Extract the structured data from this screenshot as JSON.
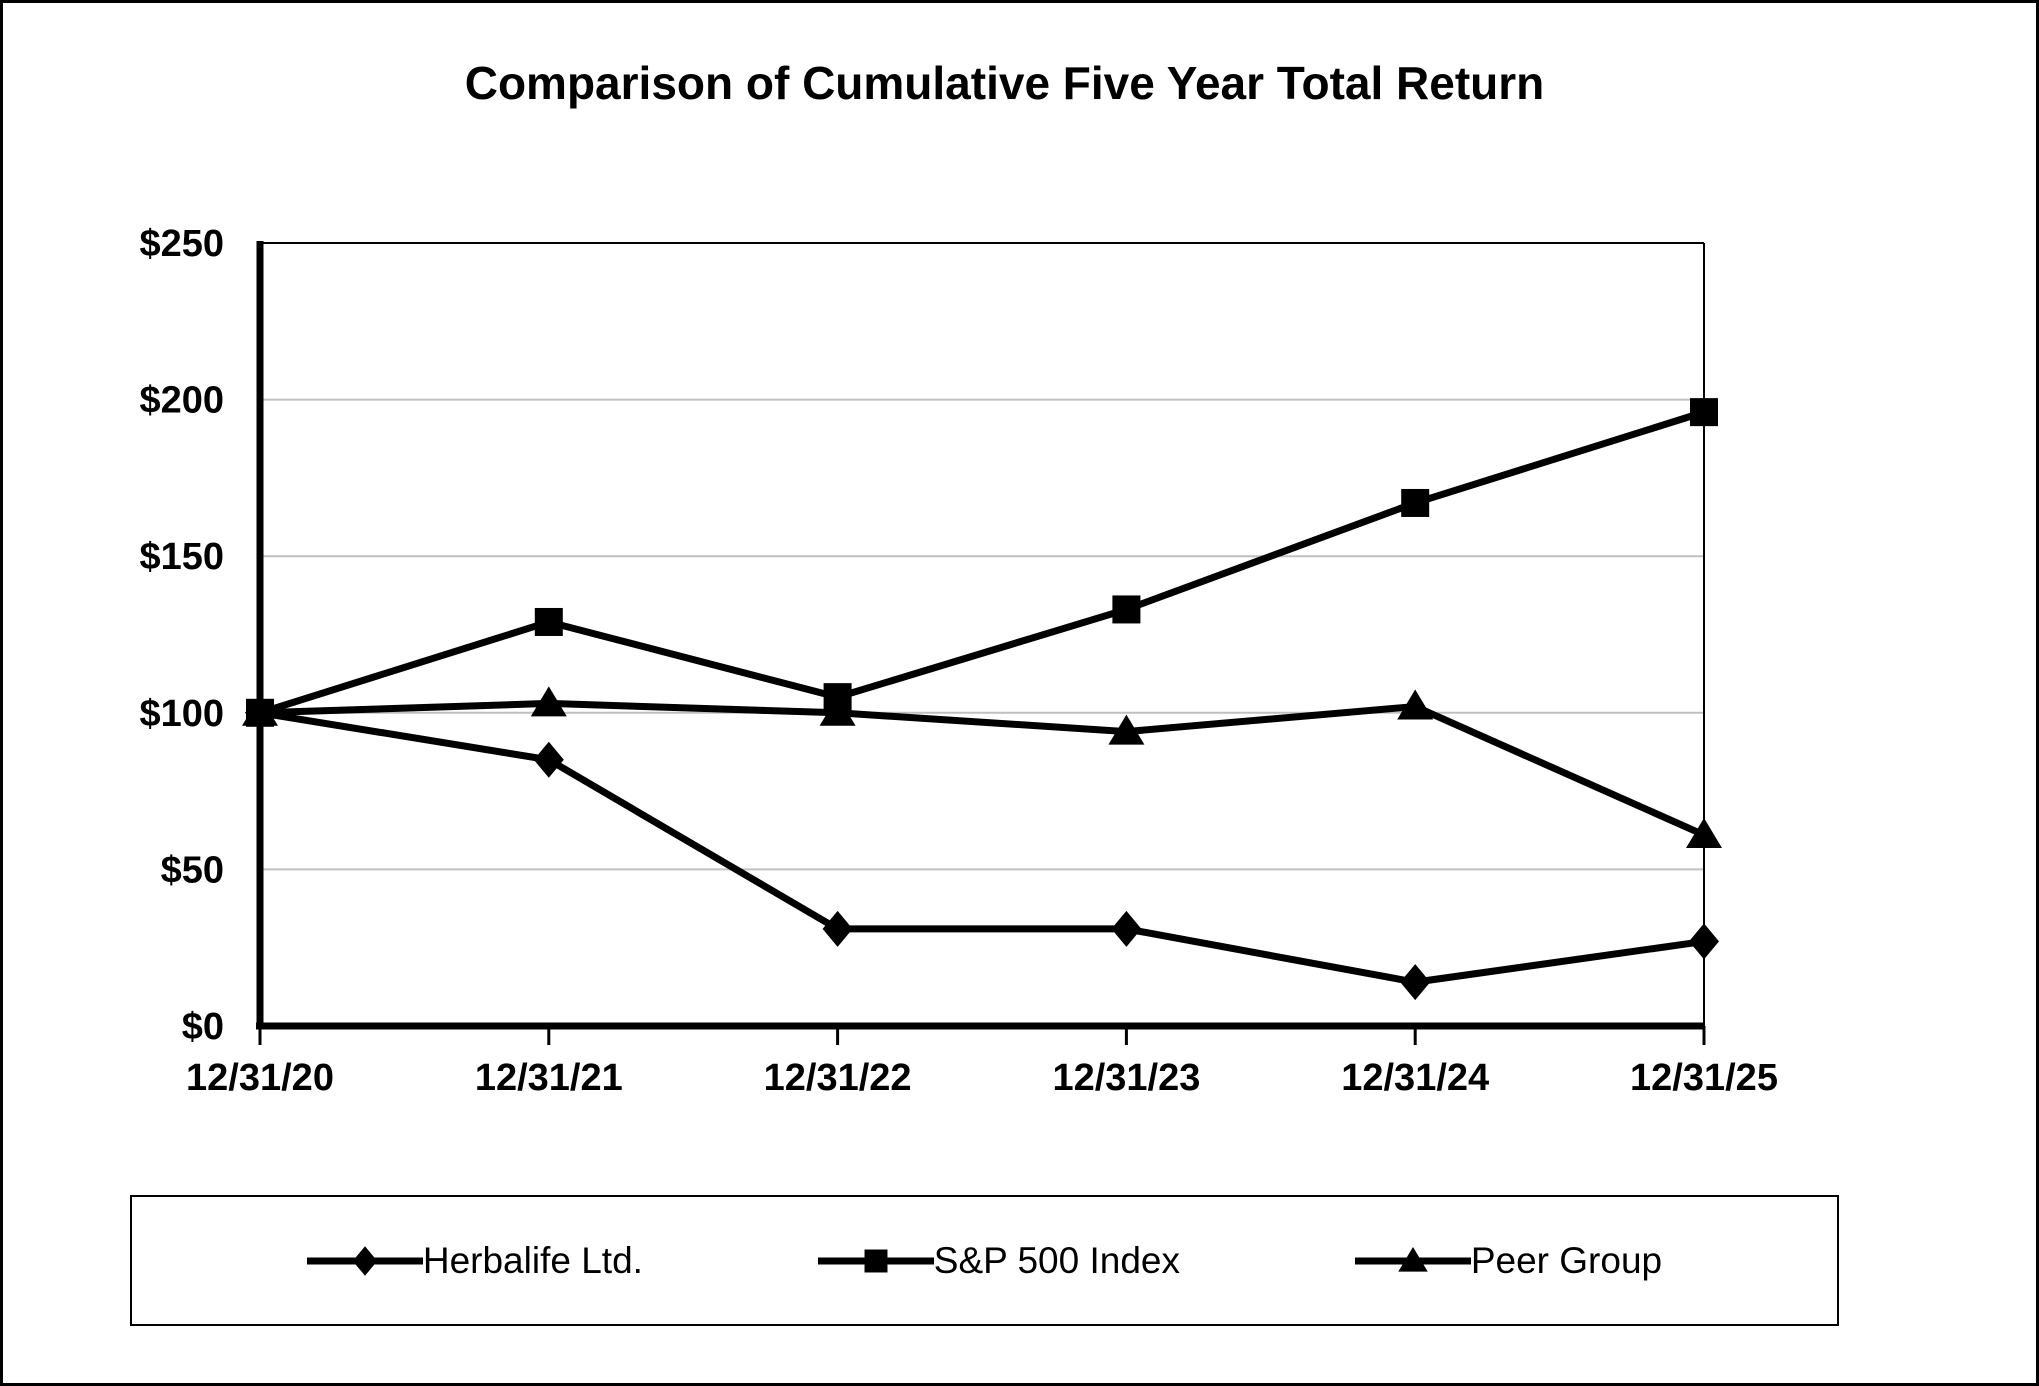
{
  "chart_data": {
    "type": "line",
    "title": "Comparison of Cumulative Five Year Total Return",
    "categories": [
      "12/31/20",
      "12/31/21",
      "12/31/22",
      "12/31/23",
      "12/31/24",
      "12/31/25"
    ],
    "series": [
      {
        "name": "Herbalife Ltd.",
        "marker": "diamond",
        "color": "#000000",
        "values": [
          100,
          85,
          31,
          31,
          14,
          27
        ]
      },
      {
        "name": "S&P 500 Index",
        "marker": "square",
        "color": "#000000",
        "values": [
          100,
          129,
          105,
          133,
          167,
          196
        ]
      },
      {
        "name": "Peer Group",
        "marker": "triangle",
        "color": "#000000",
        "values": [
          100,
          103,
          100,
          94,
          102,
          61
        ]
      }
    ],
    "xlabel": "",
    "ylabel": "",
    "ylim": [
      0,
      250
    ],
    "y_tick_step": 50,
    "y_tick_labels": [
      "$0",
      "$50",
      "$100",
      "$150",
      "$200",
      "$250"
    ],
    "grid": true,
    "legend_position": "bottom"
  },
  "colors": {
    "series": "#000000",
    "grid": "#c0c0c0",
    "axis": "#000000",
    "background": "#ffffff",
    "frame": "#000000"
  }
}
